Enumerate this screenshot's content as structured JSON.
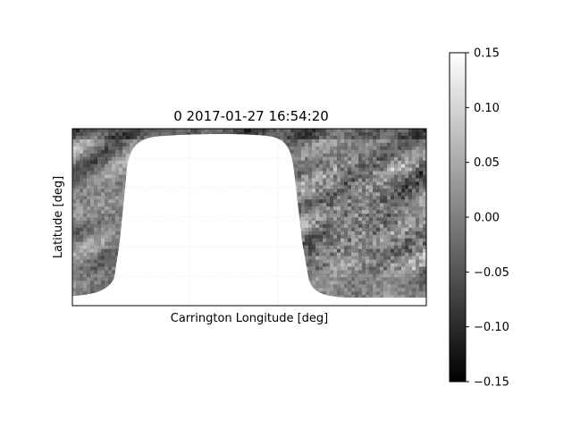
{
  "chart_data": {
    "type": "heatmap",
    "title": "0  2017-01-27 16:54:20",
    "xlabel": "Carrington Longitude [deg]",
    "ylabel": "Latitude [deg]",
    "grid": true,
    "colormap": "gray",
    "colorbar": {
      "vmin": -0.15,
      "vmax": 0.15,
      "ticks": [
        0.15,
        0.1,
        0.05,
        0.0,
        -0.05,
        -0.1,
        -0.15
      ],
      "tick_labels": [
        "0.15",
        "0.10",
        "0.05",
        "0.00",
        "−0.05",
        "−0.10",
        "−0.15"
      ]
    },
    "masked_region": "white (no data) far-side gap",
    "x_ticks_visible": false,
    "y_ticks_visible": false
  }
}
